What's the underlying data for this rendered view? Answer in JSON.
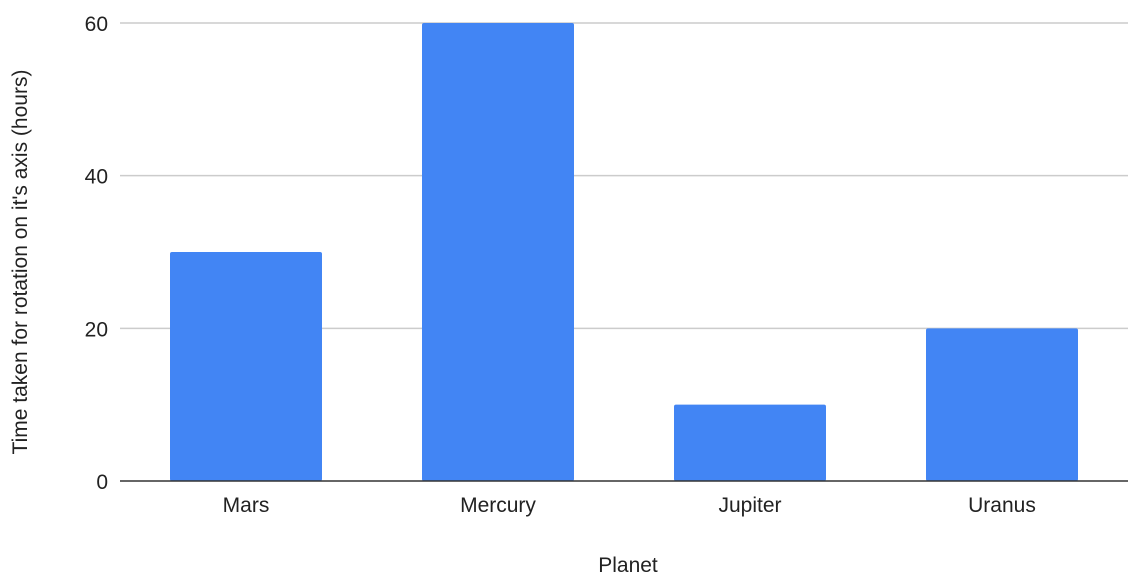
{
  "chart_data": {
    "type": "bar",
    "title": "",
    "xlabel": "Planet",
    "ylabel": "Time taken for rotation on it's axis (hours)",
    "categories": [
      "Mars",
      "Mercury",
      "Jupiter",
      "Uranus"
    ],
    "values": [
      30,
      60,
      10,
      20
    ],
    "ylim": [
      0,
      60
    ],
    "yticks": [
      0,
      20,
      40,
      60
    ],
    "grid": true,
    "legend": "none",
    "bar_color": "#4285f4",
    "grid_color": "#cccccc",
    "axis_color": "#333333"
  }
}
